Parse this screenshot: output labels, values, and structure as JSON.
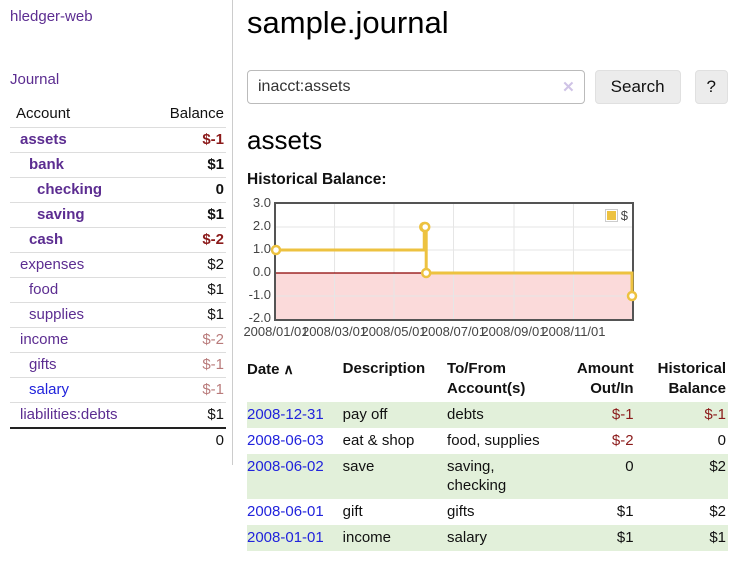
{
  "app": {
    "title": "hledger-web",
    "nav_journal": "Journal"
  },
  "colors": {
    "link_purple": "#5c2d91",
    "link_blue": "#2123dc",
    "negative_strong": "#8b1a1a",
    "negative_light": "#b97b7b",
    "row_green": "#e2f0da",
    "series_gold": "#edc240",
    "negative_region": "#fbdada",
    "zero_line": "#8b0000"
  },
  "sidebar": {
    "header": {
      "account": "Account",
      "balance": "Balance"
    },
    "accounts": [
      {
        "name": "assets",
        "balance": "$-1"
      },
      {
        "name": "bank",
        "balance": "$1"
      },
      {
        "name": "checking",
        "balance": "0"
      },
      {
        "name": "saving",
        "balance": "$1"
      },
      {
        "name": "cash",
        "balance": "$-2"
      },
      {
        "name": "expenses",
        "balance": "$2"
      },
      {
        "name": "food",
        "balance": "$1"
      },
      {
        "name": "supplies",
        "balance": "$1"
      },
      {
        "name": "income",
        "balance": "$-2"
      },
      {
        "name": "gifts",
        "balance": "$-1"
      },
      {
        "name": "salary",
        "balance": "$-1"
      },
      {
        "name": "liabilities:debts",
        "balance": "$1"
      }
    ],
    "total": "0"
  },
  "main": {
    "title": "sample.journal",
    "search": {
      "value": "inacct:assets",
      "clear_icon": "✕",
      "button_label": "Search",
      "help_label": "?"
    },
    "account_heading": "assets",
    "chart_label": "Historical Balance:"
  },
  "chart_data": {
    "type": "line",
    "step": true,
    "title": "Historical Balance:",
    "series": [
      {
        "name": "$",
        "color": "#edc240",
        "points": [
          [
            "2008-01-01",
            1
          ],
          [
            "2008-06-01",
            2
          ],
          [
            "2008-06-02",
            2
          ],
          [
            "2008-06-03",
            0
          ],
          [
            "2008-12-31",
            -1
          ]
        ]
      }
    ],
    "x_range": [
      "2008-01-01",
      "2008-12-31"
    ],
    "ylim": [
      -2,
      3
    ],
    "y_ticks": [
      {
        "label": "3.0",
        "value": 3
      },
      {
        "label": "2.0",
        "value": 2
      },
      {
        "label": "1.0",
        "value": 1
      },
      {
        "label": "0.0",
        "value": 0
      },
      {
        "label": "-1.0",
        "value": -1
      },
      {
        "label": "-2.0",
        "value": -2
      }
    ],
    "x_ticks": [
      {
        "label": "2008/01/01",
        "date": "2008-01-01"
      },
      {
        "label": "2008/03/01",
        "date": "2008-03-01"
      },
      {
        "label": "2008/05/01",
        "date": "2008-05-01"
      },
      {
        "label": "2008/07/01",
        "date": "2008-07-01"
      },
      {
        "label": "2008/09/01",
        "date": "2008-09-01"
      },
      {
        "label": "2008/11/01",
        "date": "2008-11-01"
      }
    ],
    "grid": true,
    "legend": {
      "label": "$",
      "position": "top-right"
    },
    "negative_region_fill": "#fbdada",
    "zero_line_color": "#8b0000"
  },
  "register": {
    "headers": {
      "date": "Date",
      "sort_icon": "∧",
      "description": "Description",
      "accounts": "To/From Account(s)",
      "amount": "Amount Out/In",
      "balance": "Historical Balance"
    },
    "rows": [
      {
        "date": "2008-12-31",
        "description": "pay off",
        "accounts": "debts",
        "amount": "$-1",
        "balance": "$-1"
      },
      {
        "date": "2008-06-03",
        "description": "eat & shop",
        "accounts": "food, supplies",
        "amount": "$-2",
        "balance": "0"
      },
      {
        "date": "2008-06-02",
        "description": "save",
        "accounts": "saving, checking",
        "amount": "0",
        "balance": "$2"
      },
      {
        "date": "2008-06-01",
        "description": "gift",
        "accounts": "gifts",
        "amount": "$1",
        "balance": "$2"
      },
      {
        "date": "2008-01-01",
        "description": "income",
        "accounts": "salary",
        "amount": "$1",
        "balance": "$1"
      }
    ]
  }
}
